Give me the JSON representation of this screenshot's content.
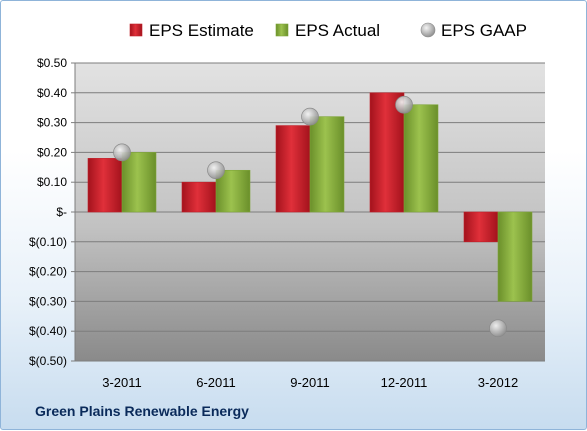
{
  "company_name": "Green Plains Renewable Energy",
  "colors": {
    "estimate": "#c0202a",
    "actual": "#7fa53a",
    "gaap": "#b9b9b9"
  },
  "chart_data": {
    "type": "bar",
    "title": "",
    "xlabel": "",
    "ylabel": "",
    "categories": [
      "3-2011",
      "6-2011",
      "9-2011",
      "12-2011",
      "3-2012"
    ],
    "ylim": [
      -0.5,
      0.5
    ],
    "yticks": [
      0.5,
      0.4,
      0.3,
      0.2,
      0.1,
      0,
      -0.1,
      -0.2,
      -0.3,
      -0.4,
      -0.5
    ],
    "ytick_labels": [
      "$0.50",
      "$0.40",
      "$0.30",
      "$0.20",
      "$0.10",
      "$-",
      "$(0.10)",
      "$(0.20)",
      "$(0.30)",
      "$(0.40)",
      "$(0.50)"
    ],
    "grid": true,
    "legend_position": "top",
    "series": [
      {
        "name": "EPS Estimate",
        "mark": "bar",
        "values": [
          0.18,
          0.1,
          0.29,
          0.4,
          -0.1
        ]
      },
      {
        "name": "EPS Actual",
        "mark": "bar",
        "values": [
          0.2,
          0.14,
          0.32,
          0.36,
          -0.3
        ]
      },
      {
        "name": "EPS GAAP",
        "mark": "point",
        "values": [
          0.2,
          0.14,
          0.32,
          0.36,
          -0.39
        ]
      }
    ]
  }
}
